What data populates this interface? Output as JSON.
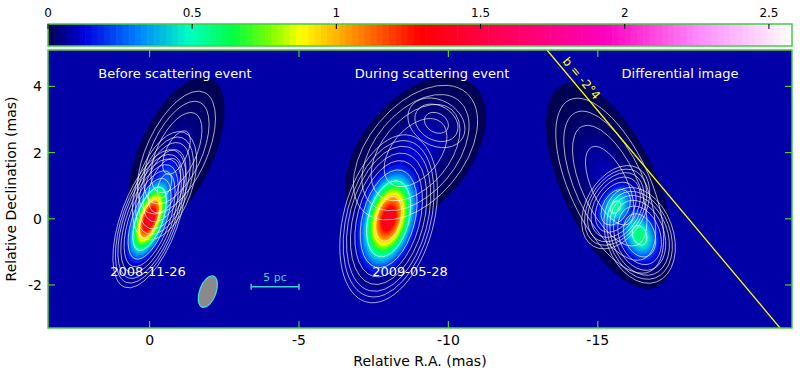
{
  "chart_data": {
    "type": "heatmap",
    "xlabel": "Relative R.A. (mas)",
    "ylabel": "Relative Declination (mas)",
    "xlim": [
      3.4,
      -21.5
    ],
    "ylim": [
      -3.3,
      5.1
    ],
    "xticks": [
      0,
      -5,
      -10,
      -15
    ],
    "yticks": [
      -2,
      0,
      2,
      4
    ],
    "colorbar": {
      "range": [
        0,
        2.58
      ],
      "ticks": [
        0,
        0.5,
        1,
        1.5,
        2,
        2.5
      ]
    },
    "contour_levels": [
      0.008,
      0.016,
      0.03,
      0.06,
      0.12,
      0.25,
      0.5,
      1.0
    ],
    "panels": [
      {
        "title": "Before scattering event",
        "date": "2008-11-26",
        "components": [
          {
            "x": 0,
            "y": 0,
            "peak": 1.5,
            "major": 1.6,
            "minor": 0.7,
            "pa": -20
          },
          {
            "x": -0.5,
            "y": 1.0,
            "peak": 0.3,
            "major": 1.5,
            "minor": 0.8,
            "pa": -20
          },
          {
            "x": -0.9,
            "y": 2.0,
            "peak": 0.08,
            "major": 2.2,
            "minor": 1.1,
            "pa": -25
          }
        ]
      },
      {
        "title": "During scattering event",
        "date": "2009-05-28",
        "components": [
          {
            "x": -8,
            "y": 0,
            "peak": 1.45,
            "major": 1.9,
            "minor": 1.1,
            "pa": -15
          },
          {
            "x": -8.9,
            "y": 2.0,
            "peak": 0.12,
            "major": 2.4,
            "minor": 1.6,
            "pa": -40
          },
          {
            "x": -9.6,
            "y": 2.9,
            "peak": 0.04,
            "major": 1.2,
            "minor": 1.0,
            "pa": 60
          }
        ]
      },
      {
        "title": "Differential image",
        "components": [
          {
            "x": -15.4,
            "y": 1.0,
            "peak": 0.1,
            "major": 3.0,
            "minor": 1.4,
            "pa": 25
          },
          {
            "x": -15.6,
            "y": 0.35,
            "peak": 0.55,
            "major": 1.1,
            "minor": 0.8,
            "pa": -30
          },
          {
            "x": -16.4,
            "y": -0.5,
            "peak": 0.6,
            "major": 1.2,
            "minor": 0.9,
            "pa": 20
          }
        ]
      }
    ],
    "beam": {
      "x": -1.95,
      "y": -2.2,
      "major": 1.0,
      "minor": 0.55,
      "pa": -20
    },
    "scale_bar": {
      "label": "5 pc",
      "x": [
        -3.4,
        -5.0
      ],
      "y": -2.05
    },
    "line": {
      "label": "b = -2°4",
      "x": [
        -13.3,
        -21.1
      ],
      "y": [
        5.1,
        -3.3
      ],
      "color": "#ffff00"
    }
  }
}
